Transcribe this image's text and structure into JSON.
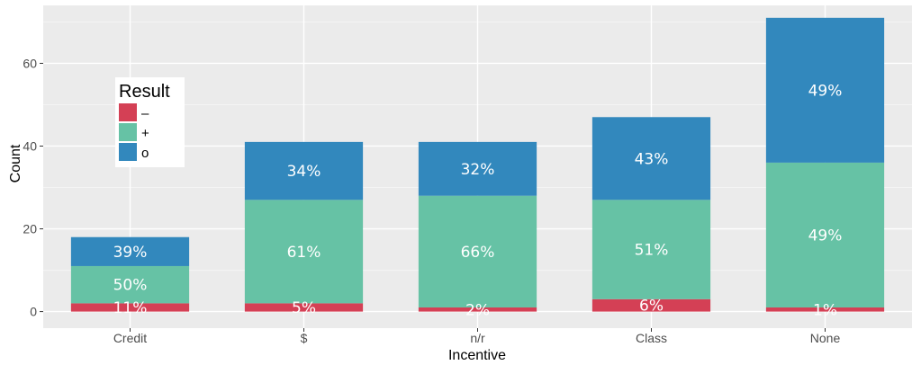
{
  "chart_data": {
    "type": "bar",
    "stacked": true,
    "xlabel": "Incentive",
    "ylabel": "Count",
    "categories": [
      "Credit",
      "$",
      "n/r",
      "Class",
      "None"
    ],
    "ylim": [
      -4,
      74
    ],
    "yticks": [
      0,
      20,
      40,
      60
    ],
    "ytick_labels": [
      "0",
      "20",
      "40",
      "60"
    ],
    "grid": true,
    "legend": {
      "title": "Result",
      "position": "top-left",
      "entries": [
        "–",
        "+",
        "o"
      ]
    },
    "series": [
      {
        "name": "–",
        "color": "#d44055",
        "values": [
          2,
          2,
          1,
          3,
          1
        ],
        "labels": [
          "11%",
          "5%",
          "2%",
          "6%",
          "1%"
        ]
      },
      {
        "name": "+",
        "color": "#66c2a5",
        "values": [
          9,
          25,
          27,
          24,
          35
        ],
        "labels": [
          "50%",
          "61%",
          "66%",
          "51%",
          "49%"
        ]
      },
      {
        "name": "o",
        "color": "#3288bd",
        "values": [
          7,
          14,
          13,
          20,
          35
        ],
        "labels": [
          "39%",
          "34%",
          "32%",
          "43%",
          "49%"
        ]
      }
    ]
  }
}
